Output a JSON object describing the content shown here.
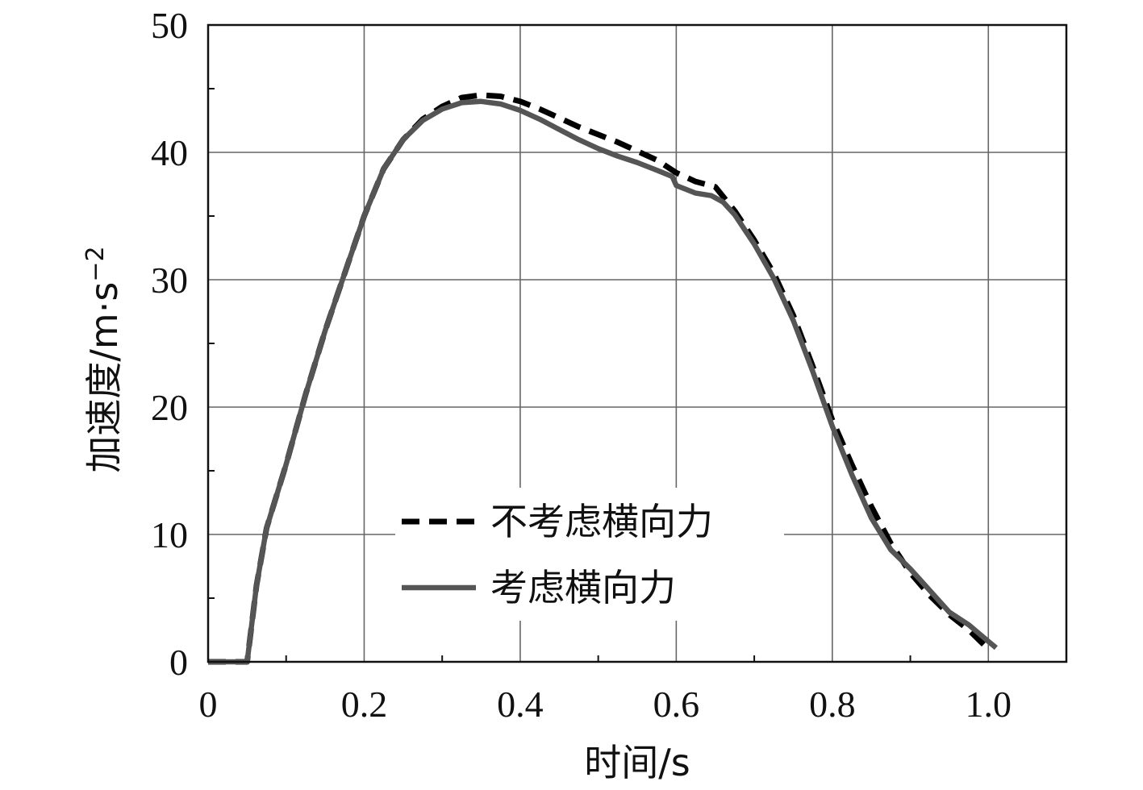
{
  "chart_data": {
    "type": "line",
    "title": "",
    "xlabel": "时间/s",
    "ylabel": "加速度/m·s",
    "ylabel_exponent": "−2",
    "xlim": [
      0,
      1.1
    ],
    "ylim": [
      0,
      50
    ],
    "x_ticks": [
      "0",
      "0.2",
      "0.4",
      "0.6",
      "0.8",
      "1.0"
    ],
    "y_ticks": [
      "0",
      "10",
      "20",
      "30",
      "40",
      "50"
    ],
    "grid": true,
    "legend_position": "bottom-center",
    "series": [
      {
        "name": "不考虑横向力",
        "style": "dashed",
        "color": "#000000",
        "points": [
          [
            0.0,
            0.0
          ],
          [
            0.05,
            0.0
          ],
          [
            0.062,
            6.0
          ],
          [
            0.075,
            10.5
          ],
          [
            0.1,
            15.5
          ],
          [
            0.125,
            21.0
          ],
          [
            0.15,
            26.0
          ],
          [
            0.175,
            30.5
          ],
          [
            0.2,
            35.0
          ],
          [
            0.225,
            38.7
          ],
          [
            0.25,
            41.0
          ],
          [
            0.275,
            42.6
          ],
          [
            0.3,
            43.6
          ],
          [
            0.325,
            44.3
          ],
          [
            0.35,
            44.5
          ],
          [
            0.375,
            44.4
          ],
          [
            0.4,
            44.0
          ],
          [
            0.425,
            43.4
          ],
          [
            0.45,
            42.7
          ],
          [
            0.475,
            42.0
          ],
          [
            0.5,
            41.4
          ],
          [
            0.525,
            40.8
          ],
          [
            0.55,
            40.1
          ],
          [
            0.575,
            39.4
          ],
          [
            0.6,
            38.4
          ],
          [
            0.625,
            37.7
          ],
          [
            0.65,
            37.3
          ],
          [
            0.675,
            35.4
          ],
          [
            0.7,
            33.1
          ],
          [
            0.725,
            30.5
          ],
          [
            0.75,
            27.2
          ],
          [
            0.775,
            23.2
          ],
          [
            0.8,
            19.0
          ],
          [
            0.825,
            15.5
          ],
          [
            0.85,
            12.2
          ],
          [
            0.875,
            9.3
          ],
          [
            0.9,
            7.0
          ],
          [
            0.925,
            5.2
          ],
          [
            0.95,
            3.7
          ],
          [
            0.975,
            2.5
          ],
          [
            1.0,
            1.0
          ]
        ]
      },
      {
        "name": "考虑横向力",
        "style": "solid",
        "color": "#555555",
        "points": [
          [
            0.0,
            0.0
          ],
          [
            0.05,
            0.0
          ],
          [
            0.062,
            6.0
          ],
          [
            0.075,
            10.5
          ],
          [
            0.1,
            15.5
          ],
          [
            0.125,
            21.0
          ],
          [
            0.15,
            26.0
          ],
          [
            0.175,
            30.5
          ],
          [
            0.2,
            35.0
          ],
          [
            0.225,
            38.7
          ],
          [
            0.25,
            41.0
          ],
          [
            0.275,
            42.5
          ],
          [
            0.3,
            43.4
          ],
          [
            0.325,
            43.9
          ],
          [
            0.35,
            44.0
          ],
          [
            0.375,
            43.8
          ],
          [
            0.4,
            43.3
          ],
          [
            0.425,
            42.6
          ],
          [
            0.45,
            41.8
          ],
          [
            0.475,
            41.0
          ],
          [
            0.5,
            40.3
          ],
          [
            0.525,
            39.7
          ],
          [
            0.55,
            39.2
          ],
          [
            0.575,
            38.6
          ],
          [
            0.595,
            38.1
          ],
          [
            0.6,
            37.4
          ],
          [
            0.625,
            36.8
          ],
          [
            0.645,
            36.6
          ],
          [
            0.66,
            36.1
          ],
          [
            0.675,
            35.1
          ],
          [
            0.7,
            32.8
          ],
          [
            0.725,
            30.1
          ],
          [
            0.75,
            26.8
          ],
          [
            0.775,
            22.8
          ],
          [
            0.8,
            18.5
          ],
          [
            0.825,
            14.7
          ],
          [
            0.85,
            11.3
          ],
          [
            0.875,
            8.8
          ],
          [
            0.9,
            7.3
          ],
          [
            0.925,
            5.6
          ],
          [
            0.95,
            3.9
          ],
          [
            0.975,
            2.9
          ],
          [
            1.0,
            1.6
          ],
          [
            1.01,
            1.1
          ]
        ]
      }
    ]
  }
}
